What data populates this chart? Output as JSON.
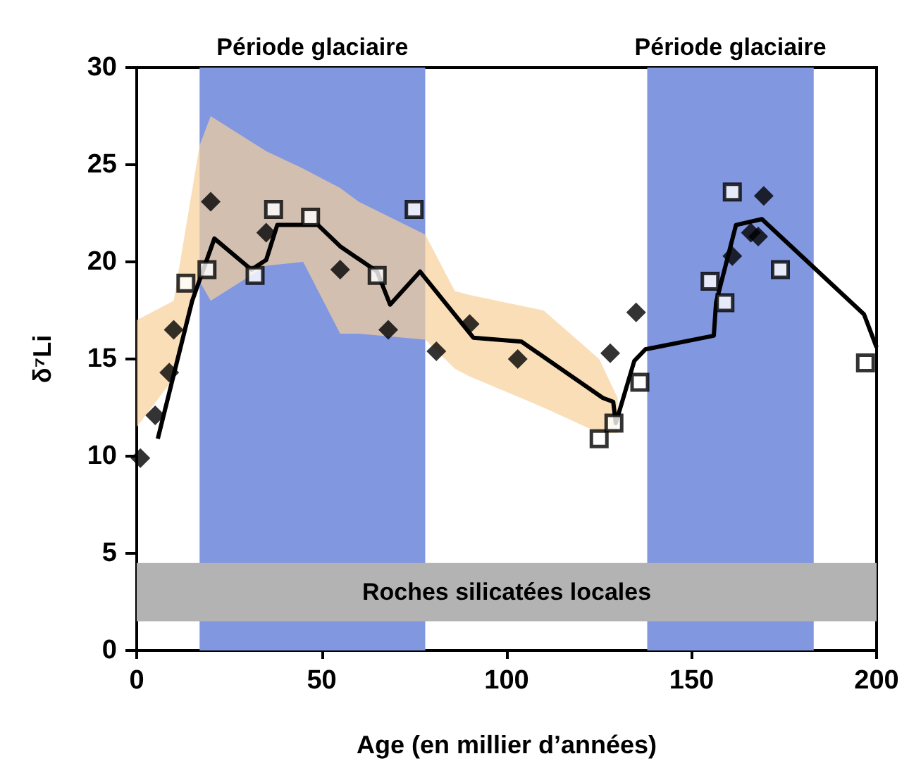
{
  "chart_data": {
    "type": "scatter",
    "xlabel": "Age (en millier d’années)",
    "ylabel": "δ⁷Li",
    "xlim": [
      0,
      200
    ],
    "xticks": [
      0,
      50,
      100,
      150,
      200
    ],
    "ylim": [
      0,
      30
    ],
    "yticks": [
      0,
      5,
      10,
      15,
      20,
      25,
      30
    ],
    "grid": false,
    "bands": [
      {
        "axis": "x",
        "from": 17,
        "to": 78,
        "label": "Période glaciaire",
        "color": "#8197e0"
      },
      {
        "axis": "x",
        "from": 138,
        "to": 183,
        "label": "Période glaciaire",
        "color": "#8197e0"
      },
      {
        "axis": "y",
        "from": 1.5,
        "to": 4.5,
        "label": "Roches silicatées locales",
        "color": "#b3b3b3"
      }
    ],
    "series": [
      {
        "type": "area",
        "color": "#f6d09a",
        "x": [
          0,
          10,
          17,
          20,
          35,
          45,
          55,
          60,
          78,
          86,
          90,
          110,
          125,
          130
        ],
        "values": [
          null,
          null,
          null,
          null,
          null,
          null,
          null,
          null,
          null,
          null,
          null,
          null,
          null,
          null
        ],
        "lower": [
          11.5,
          14,
          19,
          18,
          19.8,
          20,
          16.3,
          16.3,
          16,
          14.5,
          14.1,
          12.5,
          11.2,
          11.2
        ],
        "upper": [
          17,
          18,
          26,
          27.5,
          25.7,
          24.8,
          23.8,
          23.1,
          21.4,
          18.5,
          18.3,
          17.5,
          15,
          13
        ]
      },
      {
        "type": "line",
        "color": "#000000",
        "marker": "none",
        "x": [
          5.7,
          15,
          21,
          31,
          35,
          38,
          49,
          55,
          65,
          68.5,
          76.6,
          91,
          104,
          126,
          128.8,
          129.5,
          134.5,
          137.5,
          156,
          156.6,
          162,
          169,
          196.6,
          200
        ],
        "values": [
          10.9,
          18,
          21.2,
          19.6,
          20.1,
          21.9,
          21.9,
          20.8,
          19.5,
          17.8,
          19.5,
          16.1,
          15.9,
          13,
          12.8,
          11.7,
          14.9,
          15.5,
          16.2,
          17.9,
          21.9,
          22.2,
          17.3,
          15.6
        ]
      },
      {
        "color": "#000000",
        "marker": "diamond",
        "x": [
          1,
          5,
          8.8,
          10,
          20,
          35,
          55,
          68,
          81,
          90,
          103,
          128,
          135,
          161,
          166,
          168,
          169.5
        ],
        "values": [
          9.9,
          12.1,
          14.3,
          16.5,
          23.1,
          21.5,
          19.6,
          16.5,
          15.4,
          16.8,
          15,
          15.3,
          17.4,
          20.3,
          21.5,
          21.3,
          23.4
        ]
      },
      {
        "color": "#ffffff",
        "marker": "square",
        "x": [
          13.3,
          19,
          32,
          37,
          47,
          65,
          75,
          125,
          129,
          136,
          155,
          159,
          161,
          174,
          197
        ],
        "values": [
          18.9,
          19.6,
          19.3,
          22.7,
          22.3,
          19.3,
          22.7,
          10.9,
          11.7,
          13.8,
          19,
          17.9,
          23.6,
          19.6,
          14.8
        ]
      }
    ]
  }
}
